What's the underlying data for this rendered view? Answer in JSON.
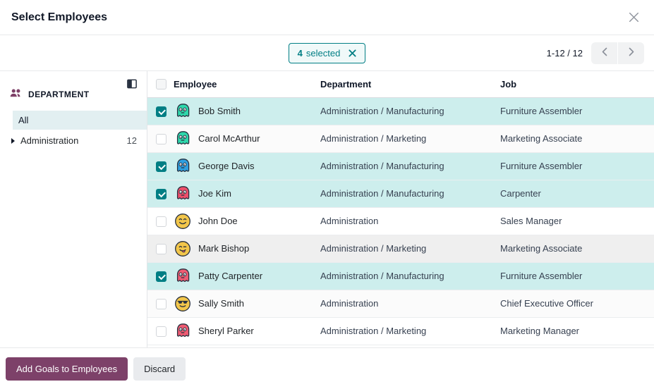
{
  "dialog": {
    "title": "Select Employees"
  },
  "icons": {
    "close": "close-icon",
    "badge_clear": "x-icon",
    "pager_prev": "chevron-left-icon",
    "pager_next": "chevron-right-icon",
    "department_section": "users-icon",
    "panel_toggle": "panel-toggle-icon",
    "expand_item": "caret-right-icon"
  },
  "toolbar": {
    "badge": {
      "count": "4",
      "label": "selected"
    },
    "pager": {
      "range": "1-12 / 12"
    }
  },
  "sidebar": {
    "section_title": "DEPARTMENT",
    "items": [
      {
        "label": "All",
        "active": true
      },
      {
        "label": "Administration",
        "count": "12",
        "expandable": true
      }
    ]
  },
  "table": {
    "columns": {
      "employee": "Employee",
      "department": "Department",
      "job": "Job"
    },
    "rows": [
      {
        "name": "Bob Smith",
        "department": "Administration / Manufacturing",
        "job": "Furniture Assembler",
        "selected": true,
        "hovered": false,
        "avatar": {
          "shape": "ghost",
          "color": "#2ed8ac"
        }
      },
      {
        "name": "Carol McArthur",
        "department": "Administration / Marketing",
        "job": "Marketing Associate",
        "selected": false,
        "hovered": false,
        "avatar": {
          "shape": "ghost",
          "color": "#2ed8ac"
        }
      },
      {
        "name": "George Davis",
        "department": "Administration / Manufacturing",
        "job": "Furniture Assembler",
        "selected": true,
        "hovered": false,
        "avatar": {
          "shape": "ghost",
          "color": "#2e9fe0"
        }
      },
      {
        "name": "Joe Kim",
        "department": "Administration / Manufacturing",
        "job": "Carpenter",
        "selected": true,
        "hovered": false,
        "avatar": {
          "shape": "ghost",
          "color": "#ee4f6b"
        }
      },
      {
        "name": "John Doe",
        "department": "Administration",
        "job": "Sales Manager",
        "selected": false,
        "hovered": false,
        "avatar": {
          "shape": "smiley",
          "color": "#f2c64b",
          "face": "smile"
        }
      },
      {
        "name": "Mark Bishop",
        "department": "Administration / Marketing",
        "job": "Marketing Associate",
        "selected": false,
        "hovered": true,
        "avatar": {
          "shape": "smiley",
          "color": "#f2c64b",
          "face": "wink"
        }
      },
      {
        "name": "Patty Carpenter",
        "department": "Administration / Manufacturing",
        "job": "Furniture Assembler",
        "selected": true,
        "hovered": false,
        "avatar": {
          "shape": "ghost",
          "color": "#ef5b72"
        }
      },
      {
        "name": "Sally Smith",
        "department": "Administration",
        "job": "Chief Executive Officer",
        "selected": false,
        "hovered": false,
        "avatar": {
          "shape": "smiley",
          "color": "#f2c64b",
          "face": "sunglasses"
        }
      },
      {
        "name": "Sheryl Parker",
        "department": "Administration / Marketing",
        "job": "Marketing Manager",
        "selected": false,
        "hovered": false,
        "avatar": {
          "shape": "ghost",
          "color": "#ef5b72"
        }
      }
    ]
  },
  "footer": {
    "add_goals_label": "Add Goals to Employees",
    "discard_label": "Discard"
  },
  "colors": {
    "accent_teal": "#017e84",
    "selected_row_bg": "#cdeeed",
    "primary_button": "#7d4169",
    "sidebar_active_bg": "#e2eff1",
    "department_icon": "#7d3f66"
  }
}
